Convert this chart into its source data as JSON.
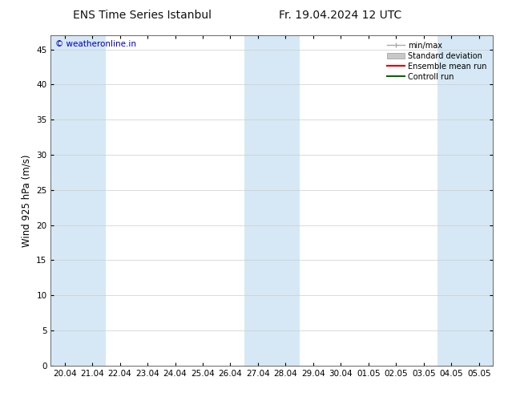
{
  "title_left": "ENS Time Series Istanbul",
  "title_right": "Fr. 19.04.2024 12 UTC",
  "ylabel": "Wind 925 hPa (m/s)",
  "watermark": "© weatheronline.in",
  "watermark_color": "#0000bb",
  "ylim": [
    0,
    47
  ],
  "yticks": [
    0,
    5,
    10,
    15,
    20,
    25,
    30,
    35,
    40,
    45
  ],
  "x_labels": [
    "20.04",
    "21.04",
    "22.04",
    "23.04",
    "24.04",
    "25.04",
    "26.04",
    "27.04",
    "28.04",
    "29.04",
    "30.04",
    "01.05",
    "02.05",
    "03.05",
    "04.05",
    "05.05"
  ],
  "bg_color": "#ffffff",
  "band_color": "#d6e8f5",
  "grid_color": "#cccccc",
  "title_fontsize": 10,
  "tick_fontsize": 7.5,
  "ylabel_fontsize": 8.5
}
